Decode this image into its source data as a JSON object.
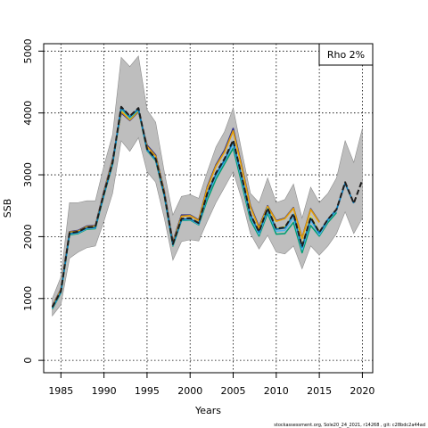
{
  "chart_data": {
    "type": "line",
    "title": "",
    "xlabel": "Years",
    "ylabel": "SSB",
    "xlim": [
      1983.0,
      2021.2
    ],
    "ylim": [
      -200,
      5120
    ],
    "x_ticks": [
      1985,
      1990,
      1995,
      2000,
      2005,
      2010,
      2015,
      2020
    ],
    "y_ticks": [
      0,
      1000,
      2000,
      3000,
      4000,
      5000
    ],
    "grid": true,
    "grid_style": "dotted",
    "legend": {
      "text": "Rho 2%",
      "placement": "top-right"
    },
    "colors": {
      "band": "#bebebe",
      "band_edge": "#8c8c8c",
      "peels": [
        "#0072b2",
        "#56b4e9",
        "#009e73",
        "#f0e442",
        "#e69f00",
        "#2e2e8a"
      ],
      "base": "#1c1c1c"
    },
    "confidence_band": {
      "x": [
        1984,
        1985,
        1986,
        1987,
        1988,
        1989,
        1990,
        1991,
        1992,
        1993,
        1994,
        1995,
        1996,
        1997,
        1998,
        1999,
        2000,
        2001,
        2002,
        2003,
        2004,
        2005,
        2006,
        2007,
        2008,
        2009,
        2010,
        2011,
        2012,
        2013,
        2014,
        2015,
        2016,
        2017,
        2018,
        2019,
        2020
      ],
      "upper": [
        1000,
        1350,
        2550,
        2550,
        2580,
        2580,
        3150,
        3650,
        4900,
        4750,
        4920,
        4050,
        3850,
        3050,
        2350,
        2650,
        2680,
        2620,
        3050,
        3450,
        3700,
        4080,
        3380,
        2700,
        2550,
        2950,
        2550,
        2600,
        2850,
        2300,
        2800,
        2550,
        2700,
        2950,
        3550,
        3200,
        3750
      ],
      "lower": [
        720,
        900,
        1650,
        1750,
        1820,
        1850,
        2250,
        2700,
        3550,
        3380,
        3600,
        3050,
        2880,
        2300,
        1620,
        1920,
        1950,
        1930,
        2250,
        2550,
        2800,
        3050,
        2600,
        2050,
        1800,
        2020,
        1750,
        1720,
        1850,
        1480,
        1850,
        1700,
        1850,
        2050,
        2400,
        2050,
        2300
      ]
    },
    "series": [
      {
        "x": [
          1984,
          1985,
          1986,
          1987,
          1988,
          1989,
          1990,
          1991,
          1992,
          1993,
          1994,
          1995,
          1996,
          1997,
          1998,
          1999,
          2000,
          2001,
          2002,
          2003,
          2004,
          2005,
          2006,
          2007,
          2008,
          2009,
          2010,
          2011,
          2012,
          2013,
          2014,
          2015,
          2016,
          2017,
          2018,
          2019,
          2020
        ],
        "values": [
          860,
          1120,
          2060,
          2080,
          2150,
          2160,
          2700,
          3200,
          4100,
          3950,
          4080,
          3420,
          3260,
          2690,
          1880,
          2290,
          2300,
          2220,
          2700,
          3030,
          3260,
          3560,
          2970,
          2360,
          2080,
          2460,
          2130,
          2150,
          2370,
          1840,
          2310,
          2070,
          2280,
          2440,
          2880,
          2540,
          2920
        ]
      },
      {
        "x": [
          1984,
          1985,
          1986,
          1987,
          1988,
          1989,
          1990,
          1991,
          1992,
          1993,
          1994,
          1995,
          1996,
          1997,
          1998,
          1999,
          2000,
          2001,
          2002,
          2003,
          2004,
          2005,
          2006,
          2007,
          2008,
          2009,
          2010,
          2011,
          2012,
          2013,
          2014,
          2015,
          2016,
          2017,
          2018,
          2019
        ],
        "values": [
          850,
          1110,
          2050,
          2070,
          2140,
          2150,
          2690,
          3190,
          4090,
          3940,
          4070,
          3410,
          3250,
          2680,
          1870,
          2280,
          2290,
          2210,
          2690,
          3010,
          3240,
          3540,
          2960,
          2350,
          2070,
          2450,
          2120,
          2140,
          2360,
          1830,
          2300,
          2060,
          2280,
          2440,
          2860,
          2540
        ]
      },
      {
        "x": [
          1984,
          1985,
          1986,
          1987,
          1988,
          1989,
          1990,
          1991,
          1992,
          1993,
          1994,
          1995,
          1996,
          1997,
          1998,
          1999,
          2000,
          2001,
          2002,
          2003,
          2004,
          2005,
          2006,
          2007,
          2008,
          2009,
          2010,
          2011,
          2012,
          2013,
          2014,
          2015,
          2016,
          2017,
          2018
        ],
        "values": [
          840,
          1100,
          2040,
          2060,
          2130,
          2140,
          2680,
          3180,
          4080,
          3930,
          4060,
          3400,
          3240,
          2670,
          1860,
          2270,
          2280,
          2200,
          2660,
          2980,
          3220,
          3500,
          2920,
          2320,
          2040,
          2420,
          2090,
          2100,
          2310,
          1790,
          2260,
          2030,
          2260,
          2420,
          2870
        ]
      },
      {
        "x": [
          1984,
          1985,
          1986,
          1987,
          1988,
          1989,
          1990,
          1991,
          1992,
          1993,
          1994,
          1995,
          1996,
          1997,
          1998,
          1999,
          2000,
          2001,
          2002,
          2003,
          2004,
          2005,
          2006,
          2007,
          2008,
          2009,
          2010,
          2011,
          2012,
          2013,
          2014,
          2015,
          2016,
          2017
        ],
        "values": [
          830,
          1090,
          2030,
          2050,
          2120,
          2130,
          2670,
          3170,
          4070,
          3920,
          4050,
          3390,
          3230,
          2660,
          1850,
          2260,
          2270,
          2190,
          2600,
          2930,
          3180,
          3430,
          2860,
          2270,
          2010,
          2380,
          2040,
          2050,
          2230,
          1740,
          2180,
          2010,
          2230,
          2390
        ]
      },
      {
        "x": [
          1984,
          1985,
          1986,
          1987,
          1988,
          1989,
          1990,
          1991,
          1992,
          1993,
          1994,
          1995,
          1996,
          1997,
          1998,
          1999,
          2000,
          2001,
          2002,
          2003,
          2004,
          2005,
          2006,
          2007,
          2008,
          2009,
          2010,
          2011,
          2012,
          2013,
          2014,
          2015,
          2016
        ],
        "values": [
          830,
          1090,
          2030,
          2050,
          2120,
          2130,
          2670,
          3170,
          4060,
          3910,
          4050,
          3390,
          3230,
          2660,
          1850,
          2270,
          2280,
          2200,
          2640,
          2990,
          3230,
          3520,
          2950,
          2340,
          2080,
          2460,
          2130,
          2160,
          2360,
          1850,
          2330,
          2080,
          2260
        ]
      },
      {
        "x": [
          1984,
          1985,
          1986,
          1987,
          1988,
          1989,
          1990,
          1991,
          1992,
          1993,
          1994,
          1995,
          1996,
          1997,
          1998,
          1999,
          2000,
          2001,
          2002,
          2003,
          2004,
          2005,
          2006,
          2007,
          2008,
          2009,
          2010,
          2011,
          2012,
          2013,
          2014,
          2015
        ],
        "values": [
          870,
          1140,
          2070,
          2090,
          2160,
          2170,
          2720,
          3230,
          4020,
          3890,
          4030,
          3460,
          3300,
          2720,
          1900,
          2330,
          2340,
          2260,
          2790,
          3140,
          3370,
          3710,
          3120,
          2480,
          2140,
          2490,
          2250,
          2290,
          2460,
          1970,
          2440,
          2230
        ]
      },
      {
        "x": [
          1984,
          1985,
          1986,
          1987,
          1988,
          1989,
          1990,
          1991,
          1992,
          1993,
          1994,
          1995,
          1996,
          1997,
          1998,
          1999,
          2000,
          2001,
          2002,
          2003,
          2004,
          2005,
          2006,
          2007,
          2008,
          2009,
          2010,
          2011,
          2012,
          2013,
          2014,
          2015
        ],
        "values": [
          880,
          1150,
          2080,
          2100,
          2170,
          2180,
          2740,
          3250,
          4000,
          3880,
          4020,
          3480,
          3320,
          2740,
          1920,
          2350,
          2350,
          2270,
          2810,
          3160,
          3400,
          3750,
          3140,
          2500,
          2160,
          2500,
          2260,
          2300,
          2470,
          1980,
          2450,
          2240
        ]
      }
    ]
  },
  "footer": "stockassessment.org, Sole20_24_2021, r14268 , git: c28bdc2a44ad"
}
